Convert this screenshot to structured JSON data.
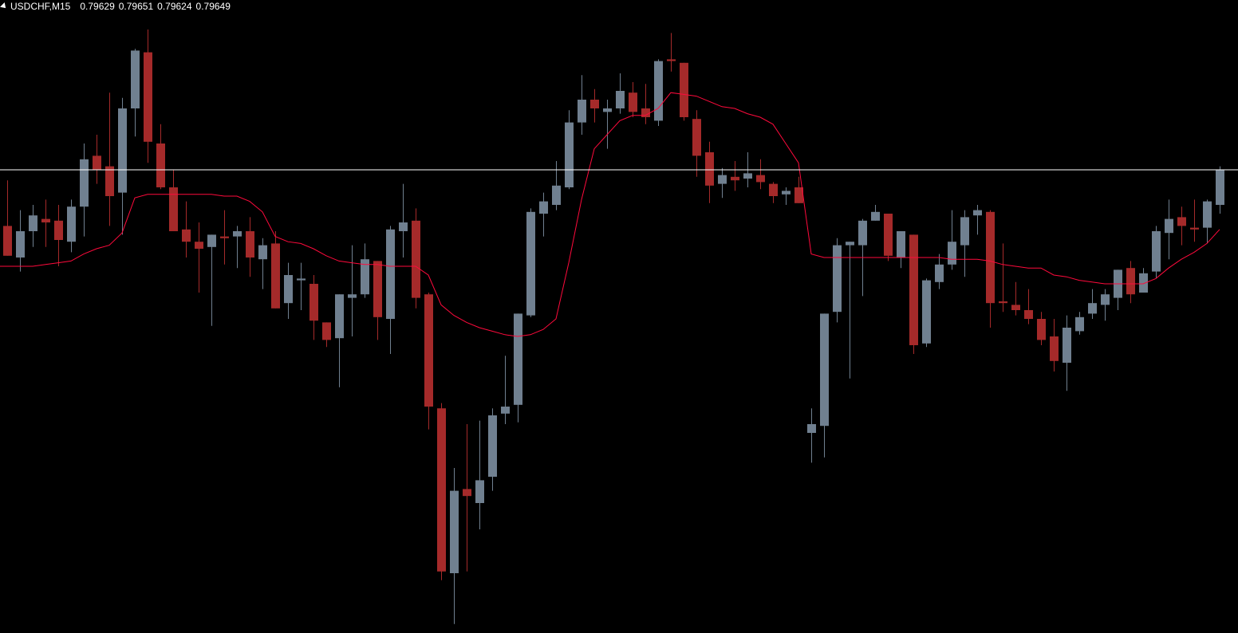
{
  "header": {
    "symbol_timeframe": "USDCHF,M15",
    "open": "0.79629",
    "high": "0.79651",
    "low": "0.79624",
    "close": "0.79649"
  },
  "chart_data": {
    "type": "candlestick",
    "symbol": "USDCHF",
    "timeframe": "M15",
    "bid_line": 0.79649,
    "colors": {
      "bull": "#708090",
      "bear": "#a52a2a",
      "indicator": "#ff0a3c",
      "bid_line": "#ffffff",
      "background": "#000000"
    },
    "ohlc": [
      [
        0.79617,
        0.79643,
        0.796,
        0.796
      ],
      [
        0.79599,
        0.79626,
        0.79591,
        0.79614
      ],
      [
        0.79614,
        0.79629,
        0.79605,
        0.79623
      ],
      [
        0.79621,
        0.79632,
        0.79605,
        0.79619
      ],
      [
        0.7962,
        0.79629,
        0.79594,
        0.79609
      ],
      [
        0.79608,
        0.79632,
        0.79602,
        0.79628
      ],
      [
        0.79628,
        0.79664,
        0.79611,
        0.79655
      ],
      [
        0.79657,
        0.79669,
        0.79641,
        0.79649
      ],
      [
        0.79651,
        0.79693,
        0.79617,
        0.79634
      ],
      [
        0.79636,
        0.7969,
        0.79612,
        0.79684
      ],
      [
        0.79684,
        0.79718,
        0.79668,
        0.79717
      ],
      [
        0.79716,
        0.79729,
        0.79653,
        0.79665
      ],
      [
        0.79664,
        0.79675,
        0.79638,
        0.79639
      ],
      [
        0.79639,
        0.79649,
        0.79614,
        0.79614
      ],
      [
        0.79615,
        0.79631,
        0.79599,
        0.79608
      ],
      [
        0.79608,
        0.79619,
        0.79579,
        0.79604
      ],
      [
        0.79605,
        0.79612,
        0.7956,
        0.79612
      ],
      [
        0.79611,
        0.79626,
        0.79595,
        0.7961
      ],
      [
        0.79611,
        0.79617,
        0.79593,
        0.79614
      ],
      [
        0.79614,
        0.79622,
        0.79588,
        0.79599
      ],
      [
        0.79598,
        0.7961,
        0.79581,
        0.79606
      ],
      [
        0.79607,
        0.79614,
        0.7957,
        0.7957
      ],
      [
        0.79573,
        0.79596,
        0.79564,
        0.79589
      ],
      [
        0.79586,
        0.79596,
        0.79569,
        0.79587
      ],
      [
        0.79584,
        0.79589,
        0.79552,
        0.79563
      ],
      [
        0.79562,
        0.79562,
        0.79548,
        0.79552
      ],
      [
        0.79553,
        0.79578,
        0.79525,
        0.79578
      ],
      [
        0.79576,
        0.79606,
        0.79554,
        0.79578
      ],
      [
        0.79578,
        0.79607,
        0.79576,
        0.79598
      ],
      [
        0.79597,
        0.79597,
        0.79552,
        0.79565
      ],
      [
        0.79564,
        0.79617,
        0.79544,
        0.79615
      ],
      [
        0.79614,
        0.79641,
        0.79599,
        0.79619
      ],
      [
        0.7962,
        0.79627,
        0.7957,
        0.79576
      ],
      [
        0.79578,
        0.79579,
        0.79501,
        0.79514
      ],
      [
        0.79513,
        0.79516,
        0.79415,
        0.7942
      ],
      [
        0.79419,
        0.79479,
        0.7939,
        0.79466
      ],
      [
        0.79467,
        0.79504,
        0.7942,
        0.79463
      ],
      [
        0.79459,
        0.79506,
        0.79444,
        0.79472
      ],
      [
        0.79474,
        0.79513,
        0.79466,
        0.79509
      ],
      [
        0.7951,
        0.79543,
        0.79504,
        0.79514
      ],
      [
        0.79515,
        0.79567,
        0.79505,
        0.79567
      ],
      [
        0.79566,
        0.79627,
        0.79565,
        0.79625
      ],
      [
        0.79624,
        0.79636,
        0.79611,
        0.79631
      ],
      [
        0.79629,
        0.79654,
        0.79626,
        0.7964
      ],
      [
        0.79639,
        0.79683,
        0.79638,
        0.79676
      ],
      [
        0.79676,
        0.79703,
        0.79669,
        0.79689
      ],
      [
        0.79689,
        0.79695,
        0.79676,
        0.79684
      ],
      [
        0.79682,
        0.79689,
        0.79661,
        0.79684
      ],
      [
        0.79684,
        0.79704,
        0.79681,
        0.79694
      ],
      [
        0.79693,
        0.79699,
        0.79679,
        0.79682
      ],
      [
        0.79684,
        0.79698,
        0.79675,
        0.79679
      ],
      [
        0.79677,
        0.79712,
        0.79674,
        0.79711
      ],
      [
        0.79712,
        0.79727,
        0.79705,
        0.79711
      ],
      [
        0.7971,
        0.7971,
        0.79677,
        0.79679
      ],
      [
        0.79678,
        0.79683,
        0.79645,
        0.79657
      ],
      [
        0.79659,
        0.79665,
        0.7963,
        0.7964
      ],
      [
        0.79641,
        0.7965,
        0.79633,
        0.79646
      ],
      [
        0.79645,
        0.79654,
        0.79637,
        0.79643
      ],
      [
        0.79644,
        0.79659,
        0.79639,
        0.79647
      ],
      [
        0.79646,
        0.79655,
        0.79638,
        0.79642
      ],
      [
        0.79641,
        0.79642,
        0.7963,
        0.79634
      ],
      [
        0.79635,
        0.79639,
        0.79629,
        0.79637
      ],
      [
        0.79639,
        0.79645,
        0.7963,
        0.7963
      ],
      [
        0.79499,
        0.79513,
        0.79482,
        0.79504
      ],
      [
        0.79503,
        0.79567,
        0.79485,
        0.79567
      ],
      [
        0.79568,
        0.7961,
        0.79562,
        0.79606
      ],
      [
        0.79606,
        0.79608,
        0.7953,
        0.79608
      ],
      [
        0.79606,
        0.79621,
        0.79577,
        0.7962
      ],
      [
        0.7962,
        0.79629,
        0.7962,
        0.79625
      ],
      [
        0.79624,
        0.79624,
        0.79597,
        0.796
      ],
      [
        0.79599,
        0.79614,
        0.79593,
        0.79614
      ],
      [
        0.79612,
        0.79612,
        0.79544,
        0.79549
      ],
      [
        0.7955,
        0.79587,
        0.79548,
        0.79586
      ],
      [
        0.79585,
        0.79601,
        0.79581,
        0.79595
      ],
      [
        0.79595,
        0.79626,
        0.79592,
        0.79608
      ],
      [
        0.79606,
        0.79626,
        0.79588,
        0.79622
      ],
      [
        0.79623,
        0.79629,
        0.79612,
        0.79626
      ],
      [
        0.79625,
        0.79626,
        0.79559,
        0.79573
      ],
      [
        0.79574,
        0.79607,
        0.79568,
        0.79573
      ],
      [
        0.79572,
        0.79585,
        0.79566,
        0.79569
      ],
      [
        0.79569,
        0.79581,
        0.79561,
        0.79564
      ],
      [
        0.79564,
        0.79568,
        0.79549,
        0.79552
      ],
      [
        0.79554,
        0.79564,
        0.79534,
        0.7954
      ],
      [
        0.79539,
        0.79566,
        0.79523,
        0.79559
      ],
      [
        0.79557,
        0.79568,
        0.79555,
        0.79565
      ],
      [
        0.79567,
        0.79581,
        0.79564,
        0.79573
      ],
      [
        0.79572,
        0.79581,
        0.79563,
        0.79578
      ],
      [
        0.79576,
        0.79592,
        0.79569,
        0.79592
      ],
      [
        0.79593,
        0.79597,
        0.79573,
        0.79578
      ],
      [
        0.79579,
        0.79593,
        0.79579,
        0.7959
      ],
      [
        0.79591,
        0.79617,
        0.79587,
        0.79614
      ],
      [
        0.79613,
        0.79632,
        0.79598,
        0.79621
      ],
      [
        0.79622,
        0.79628,
        0.79606,
        0.79617
      ],
      [
        0.79616,
        0.79632,
        0.79608,
        0.79615
      ],
      [
        0.79616,
        0.79632,
        0.79607,
        0.79631
      ],
      [
        0.79629,
        0.79651,
        0.79624,
        0.79649
      ]
    ],
    "indicator": [
      0.79594,
      0.79594,
      0.79594,
      0.79595,
      0.79596,
      0.79597,
      0.79601,
      0.79604,
      0.79606,
      0.79613,
      0.79633,
      0.79635,
      0.79635,
      0.79635,
      0.79635,
      0.79635,
      0.79635,
      0.79634,
      0.79634,
      0.79631,
      0.79625,
      0.79611,
      0.79608,
      0.79607,
      0.79604,
      0.796,
      0.79597,
      0.79596,
      0.79595,
      0.79595,
      0.79594,
      0.79594,
      0.79594,
      0.79589,
      0.79572,
      0.79566,
      0.79562,
      0.79559,
      0.79557,
      0.79555,
      0.79554,
      0.79555,
      0.79558,
      0.79564,
      0.79596,
      0.79632,
      0.79661,
      0.79669,
      0.79677,
      0.7968,
      0.7968,
      0.79684,
      0.79693,
      0.79692,
      0.79691,
      0.79688,
      0.79685,
      0.79684,
      0.79681,
      0.79679,
      0.79675,
      0.79664,
      0.79653,
      0.79601,
      0.79599,
      0.79599,
      0.79599,
      0.79599,
      0.79599,
      0.79599,
      0.79599,
      0.79599,
      0.79599,
      0.79599,
      0.79598,
      0.79598,
      0.79598,
      0.79597,
      0.79595,
      0.79594,
      0.79593,
      0.79593,
      0.79589,
      0.79588,
      0.79586,
      0.79585,
      0.79584,
      0.79584,
      0.79584,
      0.79584,
      0.79587,
      0.79593,
      0.79598,
      0.79602,
      0.79607,
      0.79615
    ]
  }
}
